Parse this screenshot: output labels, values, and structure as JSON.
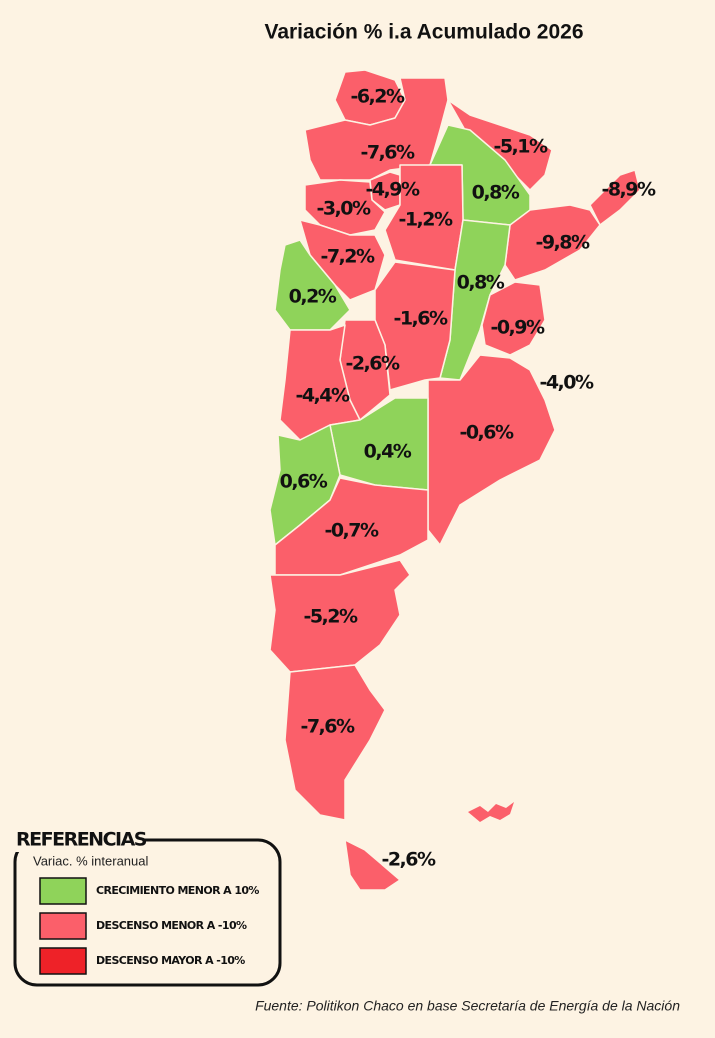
{
  "title": "Variación % i.a Acumulado 2026",
  "regions": [
    {
      "label": "-6,2%",
      "color": "#fb5f6a"
    },
    {
      "label": "-7,6%",
      "color": "#fb5f6a"
    },
    {
      "label": "-5,1%",
      "color": "#fb5f6a"
    },
    {
      "label": "0,8%",
      "color": "#8fd35a"
    },
    {
      "label": "-8,9%",
      "color": "#fb5f6a"
    },
    {
      "label": "-4,9%",
      "color": "#fb5f6a"
    },
    {
      "label": "-3,0%",
      "color": "#fb5f6a"
    },
    {
      "label": "-1,2%",
      "color": "#fb5f6a"
    },
    {
      "label": "-9,8%",
      "color": "#fb5f6a"
    },
    {
      "label": "-7,2%",
      "color": "#fb5f6a"
    },
    {
      "label": "0,8%",
      "color": "#8fd35a"
    },
    {
      "label": "0,2%",
      "color": "#8fd35a"
    },
    {
      "label": "-1,6%",
      "color": "#fb5f6a"
    },
    {
      "label": "-0,9%",
      "color": "#fb5f6a"
    },
    {
      "label": "-2,6%",
      "color": "#fb5f6a"
    },
    {
      "label": "-4,0%",
      "color": "#fb5f6a"
    },
    {
      "label": "-4,4%",
      "color": "#fb5f6a"
    },
    {
      "label": "-0,6%",
      "color": "#fb5f6a"
    },
    {
      "label": "0,4%",
      "color": "#8fd35a"
    },
    {
      "label": "0,6%",
      "color": "#8fd35a"
    },
    {
      "label": "-0,7%",
      "color": "#fb5f6a"
    },
    {
      "label": "-5,2%",
      "color": "#fb5f6a"
    },
    {
      "label": "-7,6%",
      "color": "#fb5f6a"
    },
    {
      "label": "-2,6%",
      "color": "#fb5f6a"
    }
  ],
  "legend": {
    "title": "REFERENCIAS",
    "subtitle": "Variac. % interanual",
    "items": [
      {
        "label": "CRECIMIENTO MENOR A 10%",
        "color": "#8fd35a"
      },
      {
        "label": "DESCENSO MENOR A -10%",
        "color": "#fb5f6a"
      },
      {
        "label": "DESCENSO MAYOR A -10%",
        "color": "#ee2228"
      }
    ]
  },
  "source": "Fuente: Politikon Chaco en base Secretaría de Energía de la Nación"
}
